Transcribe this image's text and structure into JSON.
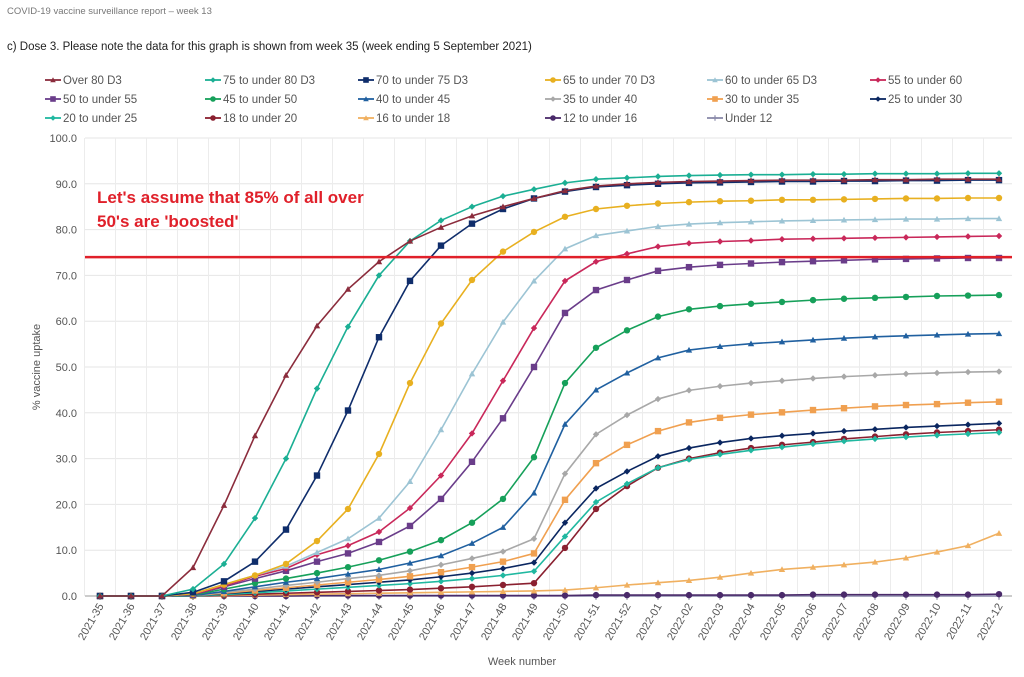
{
  "header": "COVID-19 vaccine surveillance report – week 13",
  "subtitle": "c) Dose 3. Please note the data for this graph is shown from week 35 (week ending 5 September 2021)",
  "annotation": {
    "line1": "Let's assume that 85% of all over",
    "line2": "50's are 'boosted'",
    "line_value": 74,
    "color": "#e0202a"
  },
  "chart_data": {
    "type": "line",
    "xlabel": "Week number",
    "ylabel": "% vaccine uptake",
    "ylim": [
      0,
      100
    ],
    "yticks": [
      "0.0",
      "10.0",
      "20.0",
      "30.0",
      "40.0",
      "50.0",
      "60.0",
      "70.0",
      "80.0",
      "90.0",
      "100.0"
    ],
    "grid": true,
    "legend_placement": "top",
    "categories": [
      "2021-35",
      "2021-36",
      "2021-37",
      "2021-38",
      "2021-39",
      "2021-40",
      "2021-41",
      "2021-42",
      "2021-43",
      "2021-44",
      "2021-45",
      "2021-46",
      "2021-47",
      "2021-48",
      "2021-49",
      "2021-50",
      "2021-51",
      "2021-52",
      "2022-01",
      "2022-02",
      "2022-03",
      "2022-04",
      "2022-05",
      "2022-06",
      "2022-07",
      "2022-08",
      "2022-09",
      "2022-10",
      "2022-11",
      "2022-12"
    ],
    "series": [
      {
        "name": "Over 80 D3",
        "color": "#8b2c3c",
        "marker": "triangle",
        "values": [
          0,
          0,
          0,
          6.2,
          19.8,
          35,
          48.2,
          59,
          67,
          73,
          77.5,
          80.5,
          83,
          85,
          86.8,
          88.5,
          89.5,
          90,
          90.3,
          90.5,
          90.6,
          90.7,
          90.8,
          90.8,
          90.8,
          90.9,
          90.9,
          91,
          91,
          91
        ]
      },
      {
        "name": "75 to under 80 D3",
        "color": "#1baf94",
        "marker": "diamond",
        "values": [
          0,
          0,
          0,
          1.5,
          7,
          17,
          30,
          45.3,
          58.8,
          70,
          77.5,
          82,
          85,
          87.3,
          88.8,
          90.2,
          91,
          91.3,
          91.6,
          91.8,
          91.9,
          92,
          92,
          92.1,
          92.1,
          92.2,
          92.2,
          92.2,
          92.3,
          92.3
        ]
      },
      {
        "name": "70 to under 75 D3",
        "color": "#0f2d6b",
        "marker": "square",
        "values": [
          0,
          0,
          0,
          0.8,
          3.2,
          7.5,
          14.5,
          26.3,
          40.5,
          56.5,
          68.8,
          76.5,
          81.3,
          84.5,
          86.8,
          88.3,
          89.3,
          89.7,
          90,
          90.2,
          90.3,
          90.4,
          90.5,
          90.5,
          90.6,
          90.6,
          90.7,
          90.7,
          90.8,
          90.8
        ]
      },
      {
        "name": "65 to under 70 D3",
        "color": "#e8b020",
        "marker": "circle",
        "values": [
          0,
          0,
          0,
          0.5,
          2.5,
          4.5,
          7,
          12,
          19,
          31,
          46.5,
          59.5,
          69,
          75.2,
          79.5,
          82.8,
          84.5,
          85.2,
          85.7,
          86,
          86.2,
          86.3,
          86.5,
          86.5,
          86.6,
          86.7,
          86.8,
          86.8,
          86.9,
          86.9
        ]
      },
      {
        "name": "60 to under 65 D3",
        "color": "#9cc4d4",
        "marker": "triangle",
        "values": [
          0,
          0,
          0,
          0.5,
          2.5,
          4.5,
          6.5,
          9.5,
          12.5,
          17,
          25,
          36.3,
          48.5,
          59.8,
          68.8,
          75.8,
          78.7,
          79.7,
          80.7,
          81.2,
          81.5,
          81.7,
          81.9,
          82,
          82.1,
          82.2,
          82.3,
          82.3,
          82.4,
          82.4
        ]
      },
      {
        "name": "55 to under 60",
        "color": "#c9285a",
        "marker": "diamond",
        "values": [
          0,
          0,
          0,
          0.4,
          2.2,
          4.3,
          6,
          9,
          11,
          14,
          19.2,
          26.3,
          35.5,
          47,
          58.5,
          68.8,
          73,
          74.7,
          76.3,
          77,
          77.4,
          77.6,
          77.9,
          78,
          78.1,
          78.2,
          78.3,
          78.4,
          78.5,
          78.6
        ]
      },
      {
        "name": "50 to under 55",
        "color": "#6a3d8a",
        "marker": "square",
        "values": [
          0,
          0,
          0,
          0.3,
          2,
          3.8,
          5.5,
          7.5,
          9.3,
          11.8,
          15.3,
          21.2,
          29.3,
          38.8,
          50,
          61.8,
          66.8,
          69,
          71,
          71.8,
          72.3,
          72.6,
          72.9,
          73.1,
          73.3,
          73.5,
          73.6,
          73.7,
          73.8,
          73.8
        ]
      },
      {
        "name": "45 to under 50",
        "color": "#16a05a",
        "marker": "circle",
        "values": [
          0,
          0,
          0,
          0.2,
          1.5,
          2.8,
          3.8,
          5,
          6.3,
          7.8,
          9.7,
          12.2,
          16,
          21.2,
          30.3,
          46.5,
          54.2,
          58,
          61,
          62.6,
          63.3,
          63.8,
          64.2,
          64.6,
          64.9,
          65.1,
          65.3,
          65.5,
          65.6,
          65.7
        ]
      },
      {
        "name": "40 to under 45",
        "color": "#2060a0",
        "marker": "triangle",
        "values": [
          0,
          0,
          0,
          0.1,
          1,
          2,
          3,
          3.8,
          4.8,
          5.8,
          7.2,
          8.8,
          11.5,
          15,
          22.5,
          37.5,
          45,
          48.7,
          52,
          53.7,
          54.5,
          55.1,
          55.5,
          55.9,
          56.3,
          56.6,
          56.8,
          57,
          57.2,
          57.3
        ]
      },
      {
        "name": "35 to under 40",
        "color": "#a8a8a8",
        "marker": "diamond",
        "values": [
          0,
          0,
          0,
          0.1,
          0.8,
          1.5,
          2.3,
          3,
          3.8,
          4.5,
          5.5,
          6.8,
          8.2,
          9.7,
          12.5,
          26.7,
          35.3,
          39.5,
          43,
          44.9,
          45.8,
          46.5,
          47,
          47.5,
          47.9,
          48.2,
          48.5,
          48.7,
          48.9,
          49
        ]
      },
      {
        "name": "30 to under 35",
        "color": "#f0a050",
        "marker": "square",
        "values": [
          0,
          0,
          0,
          0.1,
          0.6,
          1.2,
          1.8,
          2.4,
          3,
          3.6,
          4.3,
          5.2,
          6.3,
          7.5,
          9.3,
          21,
          29,
          33,
          36,
          37.9,
          38.9,
          39.6,
          40.1,
          40.6,
          41,
          41.4,
          41.7,
          41.9,
          42.2,
          42.4
        ]
      },
      {
        "name": "25 to under 30",
        "color": "#0a2660",
        "marker": "diamond",
        "values": [
          0,
          0,
          0,
          0.1,
          0.5,
          1,
          1.5,
          2,
          2.5,
          3,
          3.5,
          4.2,
          5,
          6,
          7.3,
          16,
          23.5,
          27.2,
          30.5,
          32.3,
          33.5,
          34.4,
          35,
          35.5,
          36,
          36.4,
          36.8,
          37.1,
          37.4,
          37.7
        ]
      },
      {
        "name": "20 to under 25",
        "color": "#20b8a0",
        "marker": "diamond",
        "values": [
          0,
          0,
          0,
          0,
          0.3,
          0.7,
          1.1,
          1.5,
          1.9,
          2.3,
          2.7,
          3.2,
          3.8,
          4.5,
          5.4,
          13,
          20.5,
          24.5,
          28,
          29.8,
          30.9,
          31.8,
          32.5,
          33.2,
          33.8,
          34.3,
          34.7,
          35.1,
          35.4,
          35.7
        ]
      },
      {
        "name": "18 to under 20",
        "color": "#8a2030",
        "marker": "circle",
        "values": [
          0,
          0,
          0,
          0,
          0.2,
          0.4,
          0.6,
          0.8,
          1,
          1.2,
          1.4,
          1.7,
          2,
          2.4,
          2.8,
          10.5,
          19,
          24,
          28,
          30,
          31.3,
          32.3,
          33,
          33.6,
          34.3,
          34.8,
          35.3,
          35.7,
          36,
          36.3
        ]
      },
      {
        "name": "16 to under 18",
        "color": "#f0b060",
        "marker": "triangle",
        "values": [
          0,
          0,
          0,
          0,
          0.1,
          0.2,
          0.3,
          0.4,
          0.5,
          0.6,
          0.7,
          0.8,
          0.9,
          1,
          1.1,
          1.3,
          1.8,
          2.4,
          2.9,
          3.4,
          4.1,
          5,
          5.8,
          6.3,
          6.8,
          7.4,
          8.3,
          9.6,
          11,
          13.7
        ]
      },
      {
        "name": "12 to under 16",
        "color": "#4a2a6a",
        "marker": "circle",
        "values": [
          0,
          0,
          0,
          0,
          0,
          0,
          0,
          0.1,
          0.1,
          0.1,
          0.1,
          0.1,
          0.1,
          0.1,
          0.1,
          0.1,
          0.2,
          0.2,
          0.2,
          0.2,
          0.2,
          0.2,
          0.2,
          0.3,
          0.3,
          0.3,
          0.3,
          0.3,
          0.3,
          0.4
        ]
      },
      {
        "name": "Under 12",
        "color": "#8a8aaa",
        "marker": "cross",
        "values": [
          0,
          0,
          0,
          0,
          0,
          0,
          0,
          0,
          0,
          0,
          0,
          0,
          0,
          0,
          0,
          0,
          0,
          0,
          0,
          0,
          0,
          0,
          0,
          0,
          0,
          0,
          0,
          0,
          0,
          0
        ]
      }
    ]
  }
}
